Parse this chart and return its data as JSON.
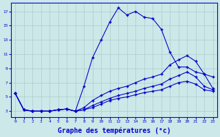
{
  "bg_color": "#cce8e8",
  "line_color": "#0000cc",
  "grid_color": "#aacccc",
  "xlabel": "Graphe des températures (°c)",
  "xlabel_fontsize": 7,
  "yticks": [
    3,
    5,
    7,
    9,
    11,
    13,
    15,
    17
  ],
  "xticks": [
    0,
    1,
    2,
    3,
    4,
    5,
    6,
    7,
    8,
    9,
    10,
    11,
    12,
    13,
    14,
    15,
    16,
    17,
    18,
    19,
    20,
    21,
    22,
    23
  ],
  "xlim": [
    -0.5,
    23.5
  ],
  "ylim": [
    2.2,
    18.2
  ],
  "line1_y": [
    5.5,
    3.2,
    3.0,
    3.0,
    3.0,
    3.2,
    3.3,
    3.0,
    6.5,
    10.5,
    13.0,
    15.5,
    17.5,
    16.5,
    17.0,
    16.2,
    16.0,
    14.5,
    11.3,
    9.2,
    9.2,
    8.5,
    8.2,
    7.8
  ],
  "line2_y": [
    5.5,
    3.2,
    3.0,
    3.0,
    3.0,
    3.2,
    3.3,
    3.0,
    3.5,
    4.5,
    5.2,
    5.8,
    6.2,
    6.5,
    7.0,
    7.5,
    7.8,
    8.2,
    9.5,
    10.2,
    10.8,
    10.0,
    8.2,
    6.2
  ],
  "line3_y": [
    5.5,
    3.2,
    3.0,
    3.0,
    3.0,
    3.2,
    3.3,
    3.0,
    3.2,
    3.8,
    4.3,
    4.8,
    5.2,
    5.5,
    5.8,
    6.2,
    6.5,
    6.8,
    7.5,
    8.0,
    8.5,
    7.8,
    6.5,
    6.0
  ],
  "line4_y": [
    5.5,
    3.2,
    3.0,
    3.0,
    3.0,
    3.2,
    3.3,
    3.0,
    3.2,
    3.5,
    4.0,
    4.5,
    4.8,
    5.0,
    5.3,
    5.6,
    5.8,
    6.0,
    6.5,
    7.0,
    7.2,
    6.8,
    6.0,
    5.8
  ]
}
